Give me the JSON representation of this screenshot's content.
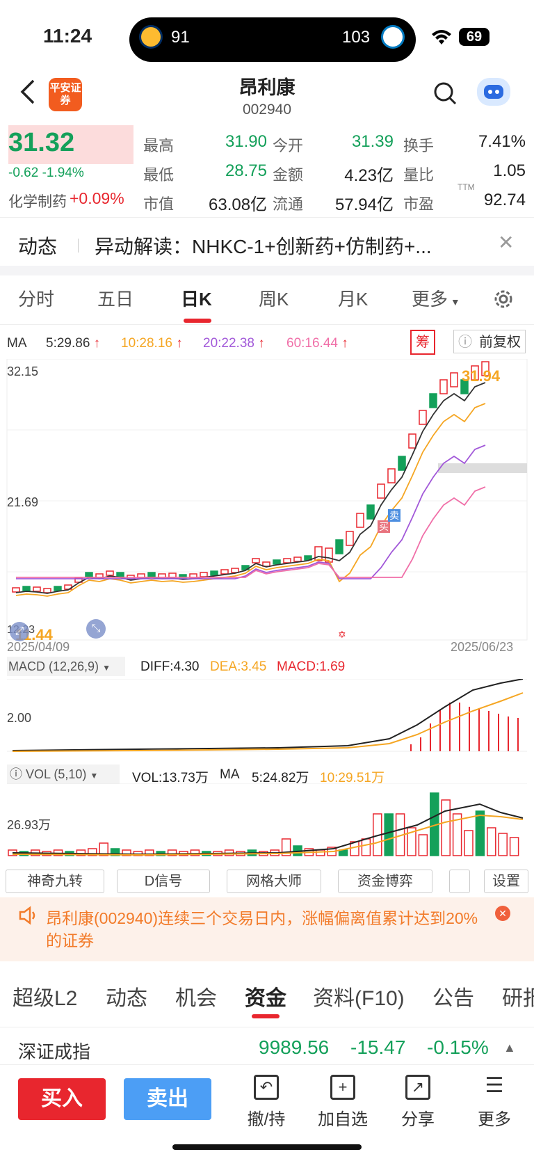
{
  "status": {
    "time": "11:24",
    "team1_score": "91",
    "team2_score": "103",
    "battery": "69"
  },
  "header": {
    "name": "昂利康",
    "code": "002940",
    "logo_text": "平安证券"
  },
  "quote": {
    "price": "31.32",
    "change": "-0.62 -1.94%",
    "industry_label": "化学制药",
    "industry_change": "+0.09%",
    "fields": [
      {
        "label": "最高",
        "value": "31.90"
      },
      {
        "label": "今开",
        "value": "31.39"
      },
      {
        "label": "换手",
        "value": "7.41%"
      },
      {
        "label": "最低",
        "value": "28.75"
      },
      {
        "label": "金额",
        "value": "4.23亿"
      },
      {
        "label": "量比",
        "value": "1.05"
      },
      {
        "label": "市值",
        "value": "63.08亿"
      },
      {
        "label": "流通",
        "value": "57.94亿"
      },
      {
        "label": "市盈",
        "value": "92.74"
      }
    ],
    "ttm": "TTM"
  },
  "news": {
    "tag": "动态",
    "text": "异动解读：NHKC-1+创新药+仿制药+..."
  },
  "ktabs": [
    "分时",
    "五日",
    "日K",
    "周K",
    "月K",
    "更多"
  ],
  "ma": {
    "label": "MA",
    "ma5": "5:29.86",
    "ma10": "10:28.16",
    "ma20": "20:22.38",
    "ma60": "60:16.44",
    "chip": "筹",
    "adjust": "前复权"
  },
  "chart": {
    "y_high": "32.15",
    "y_mid": "21.69",
    "last_label": "31.94",
    "low_label": "11.44",
    "low_axis": "12.23",
    "date_start": "2025/04/09",
    "date_end": "2025/06/23",
    "buy_mark": "买",
    "sell_mark": "卖",
    "colors": {
      "ma5": "#333333",
      "ma10": "#f5a623",
      "ma20": "#a259d9",
      "ma60": "#f06fa8",
      "up": "#e8262e",
      "down": "#14a05a"
    }
  },
  "macd": {
    "label": "MACD (12,26,9)",
    "diff": "DIFF:4.30",
    "dea": "DEA:3.45",
    "macd": "MACD:1.69",
    "axis": "2.00"
  },
  "vol": {
    "label": "VOL (5,10)",
    "vol": "VOL:13.73万",
    "ma": "MA",
    "ma5": "5:24.82万",
    "ma10": "10:29.51万",
    "axis": "26.93万"
  },
  "tools": [
    "神奇九转",
    "D信号",
    "网格大师",
    "资金博弈",
    "设置"
  ],
  "notice": "昂利康(002940)连续三个交易日内，涨幅偏离值累计达到20%的证券",
  "btabs": [
    "超级L2",
    "动态",
    "机会",
    "资金",
    "资料(F10)",
    "公告",
    "研报"
  ],
  "index": {
    "name": "深证成指",
    "value": "9989.56",
    "change": "-15.47",
    "pct": "-0.15%"
  },
  "actions": {
    "buy": "买入",
    "sell": "卖出",
    "t1": "撤/持",
    "t2": "加自选",
    "t3": "分享",
    "t4": "更多"
  }
}
